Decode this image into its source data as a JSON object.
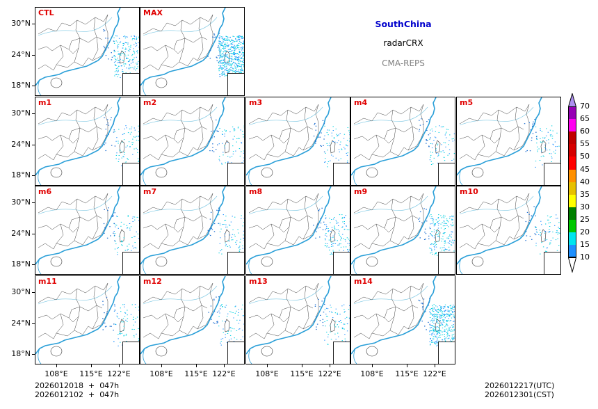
{
  "chart_data": {
    "type": "heatmap",
    "title": "SouthChina radarCRX CMA-REPS",
    "region": "SouthChina",
    "variable": "radarCRX",
    "model": "CMA-REPS",
    "panels": [
      "CTL",
      "MAX",
      "m1",
      "m2",
      "m3",
      "m4",
      "m5",
      "m6",
      "m7",
      "m8",
      "m9",
      "m10",
      "m11",
      "m12",
      "m13",
      "m14"
    ],
    "layout": {
      "rows": 4,
      "cols": 5,
      "row_panels": [
        [
          "CTL",
          "MAX"
        ],
        [
          "m1",
          "m2",
          "m3",
          "m4",
          "m5"
        ],
        [
          "m6",
          "m7",
          "m8",
          "m9",
          "m10"
        ],
        [
          "m11",
          "m12",
          "m13",
          "m14"
        ]
      ]
    },
    "y_ticks": [
      "30°N",
      "24°N",
      "18°N"
    ],
    "x_ticks": [
      "108°E",
      "115°E",
      "122°E"
    ],
    "colorbar": {
      "levels": [
        10,
        15,
        20,
        25,
        30,
        35,
        40,
        45,
        50,
        55,
        60,
        65,
        70
      ],
      "colors": [
        "#1e90ff",
        "#00e5ee",
        "#00c800",
        "#008000",
        "#ffff00",
        "#e7c000",
        "#ff9000",
        "#ff0000",
        "#d60000",
        "#c00000",
        "#ff00f0",
        "#9600b4",
        "#ad90f0"
      ],
      "extend": "both",
      "orientation": "vertical"
    },
    "init_time_utc": "2026012018",
    "init_time_cst": "2026012102",
    "lead": "047h",
    "valid_time_utc": "2026012217(UTC)",
    "valid_time_cst": "2026012301(CST)"
  },
  "header": {
    "region": "SouthChina",
    "variable": "radarCRX",
    "model": "CMA-REPS"
  },
  "panels": [
    {
      "label": "CTL"
    },
    {
      "label": "MAX"
    },
    {
      "label": "m1"
    },
    {
      "label": "m2"
    },
    {
      "label": "m3"
    },
    {
      "label": "m4"
    },
    {
      "label": "m5"
    },
    {
      "label": "m6"
    },
    {
      "label": "m7"
    },
    {
      "label": "m8"
    },
    {
      "label": "m9"
    },
    {
      "label": "m10"
    },
    {
      "label": "m11"
    },
    {
      "label": "m12"
    },
    {
      "label": "m13"
    },
    {
      "label": "m14"
    }
  ],
  "axes": {
    "lat": [
      "30°N",
      "24°N",
      "18°N"
    ],
    "lon": [
      "108°E",
      "115°E",
      "122°E"
    ]
  },
  "footer": {
    "init_line1": "2026012018  +  047h",
    "init_line2": "2026012102  +  047h",
    "valid_utc": "2026012217(UTC)",
    "valid_cst": "2026012301(CST)"
  },
  "colorbar": {
    "labels": [
      "70",
      "65",
      "60",
      "55",
      "50",
      "45",
      "40",
      "35",
      "30",
      "25",
      "20",
      "15",
      "10"
    ]
  }
}
